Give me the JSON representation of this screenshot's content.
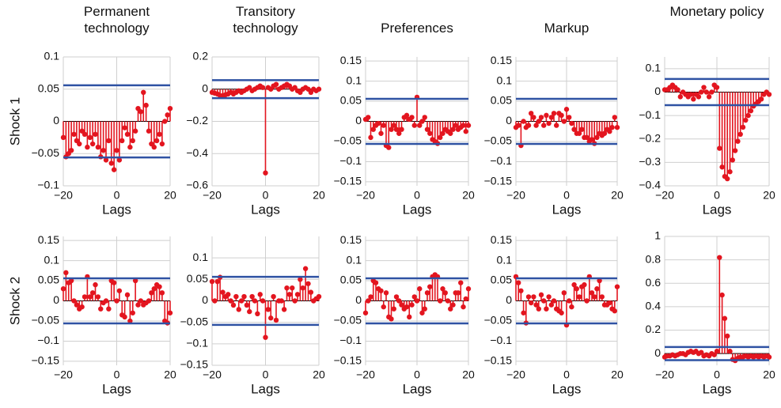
{
  "chart_data": [
    {
      "type": "stem",
      "title": "Permanent technology",
      "ylabel": "Shock 1",
      "xlabel": "Lags",
      "color": "#e3151f",
      "bound_color": "#2f52a3",
      "grid": true,
      "x": [
        -20,
        -19,
        -18,
        -17,
        -16,
        -15,
        -14,
        -13,
        -12,
        -11,
        -10,
        -9,
        -8,
        -7,
        -6,
        -5,
        -4,
        -3,
        -2,
        -1,
        0,
        1,
        2,
        3,
        4,
        5,
        6,
        7,
        8,
        9,
        10,
        11,
        12,
        13,
        14,
        15,
        16,
        17,
        18,
        19,
        20
      ],
      "values": [
        -0.025,
        -0.055,
        -0.05,
        -0.045,
        -0.02,
        -0.03,
        -0.035,
        -0.015,
        -0.02,
        -0.04,
        -0.025,
        -0.035,
        -0.02,
        -0.04,
        -0.055,
        -0.045,
        -0.06,
        -0.03,
        -0.065,
        -0.075,
        -0.045,
        -0.06,
        -0.03,
        -0.01,
        -0.02,
        -0.04,
        -0.03,
        -0.015,
        0.02,
        0.015,
        0.045,
        0.025,
        -0.015,
        -0.035,
        -0.04,
        -0.03,
        -0.02,
        -0.035,
        0.0,
        0.01,
        0.02
      ],
      "bounds": [
        -0.056,
        0.056
      ],
      "xlim": [
        -20,
        20
      ],
      "xticks": [
        {
          "value": -20,
          "label": "−20"
        },
        0,
        20
      ],
      "ylim": [
        -0.1,
        0.1
      ],
      "yticks": [
        {
          "value": -0.1,
          "label": "−0.1"
        },
        {
          "value": -0.05,
          "label": "−0.05"
        },
        0,
        0.05,
        0.1
      ]
    },
    {
      "type": "stem",
      "title": "Transitory technology",
      "xlabel": "Lags",
      "color": "#e3151f",
      "bound_color": "#2f52a3",
      "grid": true,
      "x": [
        -20,
        -19,
        -18,
        -17,
        -16,
        -15,
        -14,
        -13,
        -12,
        -11,
        -10,
        -9,
        -8,
        -7,
        -6,
        -5,
        -4,
        -3,
        -2,
        -1,
        0,
        1,
        2,
        3,
        4,
        5,
        6,
        7,
        8,
        9,
        10,
        11,
        12,
        13,
        14,
        15,
        16,
        17,
        18,
        19,
        20
      ],
      "values": [
        -0.02,
        -0.025,
        -0.03,
        -0.04,
        -0.04,
        -0.035,
        -0.03,
        -0.02,
        -0.03,
        -0.02,
        -0.01,
        -0.02,
        -0.01,
        0.0,
        0.01,
        -0.01,
        0.0,
        0.01,
        0.02,
        0.01,
        -0.52,
        0.01,
        0.0,
        0.02,
        0.03,
        0.0,
        0.01,
        0.02,
        0.03,
        0.02,
        0.0,
        0.01,
        -0.01,
        -0.02,
        0.0,
        0.01,
        0.0,
        -0.02,
        0.0,
        -0.01,
        0.0
      ],
      "bounds": [
        -0.056,
        0.056
      ],
      "xlim": [
        -20,
        20
      ],
      "xticks": [
        {
          "value": -20,
          "label": "−20"
        },
        0,
        20
      ],
      "ylim": [
        -0.6,
        0.2
      ],
      "yticks": [
        {
          "value": -0.6,
          "label": "−0.6"
        },
        {
          "value": -0.4,
          "label": "−0.4"
        },
        {
          "value": -0.2,
          "label": "−0.2"
        },
        0,
        0.2
      ]
    },
    {
      "type": "stem",
      "title": "Preferences",
      "xlabel": "Lags",
      "color": "#e3151f",
      "bound_color": "#2f52a3",
      "grid": true,
      "x": [
        -20,
        -19,
        -18,
        -17,
        -16,
        -15,
        -14,
        -13,
        -12,
        -11,
        -10,
        -9,
        -8,
        -7,
        -6,
        -5,
        -4,
        -3,
        -2,
        -1,
        0,
        1,
        2,
        3,
        4,
        5,
        6,
        7,
        8,
        9,
        10,
        11,
        12,
        13,
        14,
        15,
        16,
        17,
        18,
        19,
        20
      ],
      "values": [
        0.005,
        0.01,
        -0.04,
        -0.02,
        -0.01,
        -0.005,
        -0.03,
        -0.01,
        -0.06,
        -0.065,
        -0.02,
        -0.01,
        -0.02,
        -0.03,
        -0.02,
        0.01,
        0.015,
        0.005,
        0.01,
        -0.01,
        0.06,
        -0.01,
        0.0,
        0.01,
        -0.02,
        -0.03,
        -0.045,
        -0.05,
        -0.055,
        -0.04,
        -0.03,
        -0.02,
        -0.025,
        -0.03,
        -0.02,
        -0.01,
        -0.02,
        -0.015,
        -0.01,
        -0.025,
        -0.01
      ],
      "bounds": [
        -0.056,
        0.056
      ],
      "xlim": [
        -20,
        20
      ],
      "xticks": [
        {
          "value": -20,
          "label": "−20"
        },
        0,
        20
      ],
      "ylim": [
        -0.16,
        0.16
      ],
      "yticks": [
        {
          "value": -0.15,
          "label": "−0.15"
        },
        {
          "value": -0.1,
          "label": "−0.1"
        },
        {
          "value": -0.05,
          "label": "−0.05"
        },
        0,
        0.05,
        0.1,
        0.15
      ]
    },
    {
      "type": "stem",
      "title": "Markup",
      "xlabel": "Lags",
      "color": "#e3151f",
      "bound_color": "#2f52a3",
      "grid": true,
      "x": [
        -20,
        -19,
        -18,
        -17,
        -16,
        -15,
        -14,
        -13,
        -12,
        -11,
        -10,
        -9,
        -8,
        -7,
        -6,
        -5,
        -4,
        -3,
        -2,
        -1,
        0,
        1,
        2,
        3,
        4,
        5,
        6,
        7,
        8,
        9,
        10,
        11,
        12,
        13,
        14,
        15,
        16,
        17,
        18,
        19,
        20
      ],
      "values": [
        -0.015,
        -0.01,
        -0.06,
        0.0,
        -0.015,
        -0.01,
        0.02,
        0.01,
        -0.01,
        0.0,
        0.01,
        -0.01,
        0.015,
        -0.005,
        0.01,
        0.02,
        -0.01,
        0.02,
        0.015,
        0.0,
        0.03,
        0.01,
        -0.005,
        -0.02,
        -0.03,
        -0.03,
        -0.02,
        -0.04,
        -0.04,
        -0.05,
        -0.045,
        -0.055,
        -0.04,
        -0.03,
        -0.035,
        -0.03,
        -0.02,
        -0.025,
        -0.015,
        0.01,
        -0.015
      ],
      "bounds": [
        -0.056,
        0.056
      ],
      "xlim": [
        -20,
        20
      ],
      "xticks": [
        {
          "value": -20,
          "label": "−20"
        },
        0,
        20
      ],
      "ylim": [
        -0.16,
        0.16
      ],
      "yticks": [
        {
          "value": -0.15,
          "label": "−0.15"
        },
        {
          "value": -0.1,
          "label": "−0.1"
        },
        {
          "value": -0.05,
          "label": "−0.05"
        },
        0,
        0.05,
        0.1,
        0.15
      ]
    },
    {
      "type": "stem",
      "title": "Monetary policy",
      "xlabel": "Lags",
      "color": "#e3151f",
      "bound_color": "#2f52a3",
      "grid": true,
      "x": [
        -20,
        -19,
        -18,
        -17,
        -16,
        -15,
        -14,
        -13,
        -12,
        -11,
        -10,
        -9,
        -8,
        -7,
        -6,
        -5,
        -4,
        -3,
        -2,
        -1,
        0,
        1,
        2,
        3,
        4,
        5,
        6,
        7,
        8,
        9,
        10,
        11,
        12,
        13,
        14,
        15,
        16,
        17,
        18,
        19,
        20
      ],
      "values": [
        0.01,
        0.01,
        0.02,
        0.03,
        0.02,
        0.01,
        -0.02,
        0.0,
        -0.01,
        -0.02,
        -0.01,
        -0.03,
        -0.01,
        -0.02,
        0.0,
        0.02,
        0.0,
        -0.02,
        0.0,
        0.03,
        0.02,
        -0.24,
        -0.32,
        -0.36,
        -0.37,
        -0.34,
        -0.29,
        -0.25,
        -0.21,
        -0.18,
        -0.15,
        -0.12,
        -0.1,
        -0.08,
        -0.06,
        -0.05,
        -0.04,
        -0.03,
        -0.01,
        0.0,
        -0.01
      ],
      "bounds": [
        -0.056,
        0.056
      ],
      "xlim": [
        -20,
        20
      ],
      "xticks": [
        {
          "value": -20,
          "label": "−20"
        },
        0,
        20
      ],
      "ylim": [
        -0.4,
        0.15
      ],
      "yticks": [
        {
          "value": -0.4,
          "label": "−0.4"
        },
        {
          "value": -0.3,
          "label": "−0.3"
        },
        {
          "value": -0.2,
          "label": "−0.2"
        },
        {
          "value": -0.1,
          "label": "−0.1"
        },
        0,
        0.1
      ]
    },
    {
      "type": "stem",
      "ylabel": "Shock 2",
      "xlabel": "Lags",
      "color": "#e3151f",
      "bound_color": "#2f52a3",
      "grid": true,
      "x": [
        -20,
        -19,
        -18,
        -17,
        -16,
        -15,
        -14,
        -13,
        -12,
        -11,
        -10,
        -9,
        -8,
        -7,
        -6,
        -5,
        -4,
        -3,
        -2,
        -1,
        0,
        1,
        2,
        3,
        4,
        5,
        6,
        7,
        8,
        9,
        10,
        11,
        12,
        13,
        14,
        15,
        16,
        17,
        18,
        19,
        20
      ],
      "values": [
        0.03,
        0.07,
        0.045,
        0.05,
        0.0,
        -0.01,
        -0.02,
        -0.015,
        0.01,
        0.06,
        0.01,
        0.02,
        0.04,
        0.01,
        -0.02,
        -0.005,
        0.0,
        -0.02,
        0.05,
        0.045,
        0.0,
        0.025,
        -0.035,
        -0.04,
        0.015,
        -0.05,
        -0.03,
        0.05,
        -0.01,
        0.0,
        -0.01,
        -0.005,
        0.0,
        0.02,
        0.03,
        0.04,
        0.035,
        0.02,
        -0.05,
        -0.055,
        -0.03
      ],
      "bounds": [
        -0.056,
        0.056
      ],
      "xlim": [
        -20,
        20
      ],
      "xticks": [
        {
          "value": -20,
          "label": "−20"
        },
        0,
        20
      ],
      "ylim": [
        -0.16,
        0.16
      ],
      "yticks": [
        {
          "value": -0.15,
          "label": "−0.15"
        },
        {
          "value": -0.1,
          "label": "−0.1"
        },
        {
          "value": -0.05,
          "label": "−0.05"
        },
        0,
        0.05,
        0.1,
        0.15
      ]
    },
    {
      "type": "stem",
      "xlabel": "Lags",
      "color": "#e3151f",
      "bound_color": "#2f52a3",
      "grid": true,
      "x": [
        -20,
        -19,
        -18,
        -17,
        -16,
        -15,
        -14,
        -13,
        -12,
        -11,
        -10,
        -9,
        -8,
        -7,
        -6,
        -5,
        -4,
        -3,
        -2,
        -1,
        0,
        1,
        2,
        3,
        4,
        5,
        6,
        7,
        8,
        9,
        10,
        11,
        12,
        13,
        14,
        15,
        16,
        17,
        18,
        19,
        20
      ],
      "values": [
        0.045,
        0.0,
        0.045,
        0.055,
        0.02,
        0.01,
        0.015,
        0.0,
        -0.01,
        0.01,
        -0.02,
        0.0,
        0.01,
        -0.01,
        -0.025,
        0.01,
        0.0,
        -0.03,
        0.015,
        0.0,
        -0.085,
        -0.02,
        -0.04,
        0.01,
        -0.045,
        0.0,
        0.0,
        -0.02,
        0.03,
        0.015,
        0.03,
        0.0,
        0.015,
        0.05,
        0.03,
        0.075,
        0.04,
        0.02,
        0.0,
        0.005,
        0.01
      ],
      "bounds": [
        -0.056,
        0.056
      ],
      "xlim": [
        -20,
        20
      ],
      "xticks": [
        {
          "value": -20,
          "label": "−20"
        },
        0,
        20
      ],
      "ylim": [
        -0.15,
        0.15
      ],
      "yticks": [
        {
          "value": -0.15,
          "label": "−0.15"
        },
        {
          "value": -0.1,
          "label": "−0.1"
        },
        {
          "value": -0.05,
          "label": "−0.05"
        },
        0,
        0.05,
        0.1
      ]
    },
    {
      "type": "stem",
      "xlabel": "Lags",
      "color": "#e3151f",
      "bound_color": "#2f52a3",
      "grid": true,
      "x": [
        -20,
        -19,
        -18,
        -17,
        -16,
        -15,
        -14,
        -13,
        -12,
        -11,
        -10,
        -9,
        -8,
        -7,
        -6,
        -5,
        -4,
        -3,
        -2,
        -1,
        0,
        1,
        2,
        3,
        4,
        5,
        6,
        7,
        8,
        9,
        10,
        11,
        12,
        13,
        14,
        15,
        16,
        17,
        18,
        19,
        20
      ],
      "values": [
        -0.03,
        0.0,
        0.01,
        0.05,
        0.045,
        0.03,
        0.025,
        -0.015,
        0.02,
        -0.04,
        -0.045,
        -0.02,
        0.01,
        0.0,
        -0.01,
        -0.02,
        -0.015,
        -0.04,
        -0.01,
        0.01,
        0.0,
        0.03,
        -0.03,
        -0.02,
        0.02,
        0.035,
        0.06,
        0.065,
        0.06,
        0.0,
        0.03,
        0.02,
        0.0,
        -0.02,
        -0.01,
        0.02,
        0.02,
        0.045,
        -0.015,
        0.005,
        0.03
      ],
      "bounds": [
        -0.056,
        0.056
      ],
      "xlim": [
        -20,
        20
      ],
      "xticks": [
        {
          "value": -20,
          "label": "−20"
        },
        0,
        20
      ],
      "ylim": [
        -0.16,
        0.16
      ],
      "yticks": [
        {
          "value": -0.15,
          "label": "−0.15"
        },
        {
          "value": -0.1,
          "label": "−0.1"
        },
        {
          "value": -0.05,
          "label": "−0.05"
        },
        0,
        0.05,
        0.1,
        0.15
      ]
    },
    {
      "type": "stem",
      "xlabel": "Lags",
      "color": "#e3151f",
      "bound_color": "#2f52a3",
      "grid": true,
      "x": [
        -20,
        -19,
        -18,
        -17,
        -16,
        -15,
        -14,
        -13,
        -12,
        -11,
        -10,
        -9,
        -8,
        -7,
        -6,
        -5,
        -4,
        -3,
        -2,
        -1,
        0,
        1,
        2,
        3,
        4,
        5,
        6,
        7,
        8,
        9,
        10,
        11,
        12,
        13,
        14,
        15,
        16,
        17,
        18,
        19,
        20
      ],
      "values": [
        0.06,
        0.045,
        0.025,
        -0.03,
        -0.055,
        0.01,
        -0.005,
        0.01,
        -0.01,
        -0.02,
        0.015,
        0.0,
        -0.02,
        0.01,
        -0.01,
        0.0,
        -0.02,
        -0.025,
        -0.03,
        0.02,
        -0.06,
        0.0,
        -0.015,
        0.04,
        0.03,
        0.01,
        0.035,
        0.04,
        0.0,
        0.06,
        0.02,
        0.01,
        0.03,
        0.05,
        0.01,
        -0.01,
        -0.01,
        -0.005,
        -0.02,
        -0.025,
        0.035
      ],
      "bounds": [
        -0.056,
        0.056
      ],
      "xlim": [
        -20,
        20
      ],
      "xticks": [
        {
          "value": -20,
          "label": "−20"
        },
        0,
        20
      ],
      "ylim": [
        -0.16,
        0.16
      ],
      "yticks": [
        {
          "value": -0.15,
          "label": "−0.15"
        },
        {
          "value": -0.1,
          "label": "−0.1"
        },
        {
          "value": -0.05,
          "label": "−0.05"
        },
        0,
        0.05,
        0.1,
        0.15
      ]
    },
    {
      "type": "stem",
      "xlabel": "Lags",
      "color": "#e3151f",
      "bound_color": "#2f52a3",
      "grid": true,
      "x": [
        -20,
        -19,
        -18,
        -17,
        -16,
        -15,
        -14,
        -13,
        -12,
        -11,
        -10,
        -9,
        -8,
        -7,
        -6,
        -5,
        -4,
        -3,
        -2,
        -1,
        0,
        1,
        2,
        3,
        4,
        5,
        6,
        7,
        8,
        9,
        10,
        11,
        12,
        13,
        14,
        15,
        16,
        17,
        18,
        19,
        20
      ],
      "values": [
        -0.03,
        -0.02,
        -0.02,
        -0.01,
        -0.02,
        -0.01,
        0.0,
        0.0,
        -0.01,
        0.01,
        0.02,
        0.01,
        0.02,
        0.0,
        0.01,
        -0.02,
        -0.01,
        -0.02,
        0.0,
        -0.01,
        0.02,
        0.82,
        0.5,
        0.3,
        0.15,
        0.02,
        -0.05,
        -0.06,
        -0.04,
        -0.03,
        -0.03,
        -0.02,
        -0.03,
        -0.02,
        -0.03,
        -0.02,
        -0.03,
        -0.02,
        -0.03,
        -0.02,
        -0.03
      ],
      "bounds": [
        -0.056,
        0.056
      ],
      "xlim": [
        -20,
        20
      ],
      "xticks": [
        {
          "value": -20,
          "label": "−20"
        },
        0,
        20
      ],
      "ylim": [
        -0.1,
        1
      ],
      "yticks": [
        0,
        0.2,
        0.4,
        0.6,
        0.8,
        1
      ]
    }
  ]
}
